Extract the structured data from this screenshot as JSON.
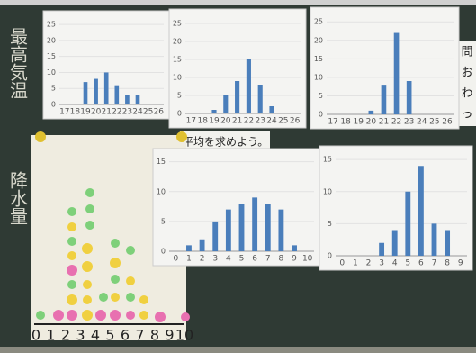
{
  "chart_data": [
    {
      "type": "bar",
      "categories": [
        "17",
        "18",
        "19",
        "20",
        "21",
        "22",
        "23",
        "24",
        "25",
        "26"
      ],
      "values": [
        null,
        null,
        7,
        8,
        10,
        6,
        3,
        3,
        null,
        null
      ],
      "color": "#4a7ebb",
      "ylim": [
        0,
        27
      ],
      "yticks": [
        0,
        5,
        10,
        15,
        20,
        25
      ]
    },
    {
      "type": "bar",
      "categories": [
        "17",
        "18",
        "19",
        "20",
        "21",
        "22",
        "23",
        "24",
        "25",
        "26"
      ],
      "values": [
        null,
        null,
        1,
        5,
        9,
        15,
        8,
        2,
        null,
        null
      ],
      "color": "#4a7ebb",
      "ylim": [
        0,
        27
      ],
      "yticks": [
        0,
        5,
        10,
        15,
        20,
        25
      ]
    },
    {
      "type": "bar",
      "categories": [
        "17",
        "18",
        "19",
        "20",
        "21",
        "22",
        "23",
        "24",
        "25",
        "26"
      ],
      "values": [
        null,
        null,
        null,
        1,
        8,
        22,
        9,
        null,
        null,
        null
      ],
      "color": "#4a7ebb",
      "ylim": [
        0,
        27
      ],
      "yticks": [
        0,
        5,
        10,
        15,
        20,
        25
      ]
    },
    {
      "type": "bar",
      "categories": [
        "0",
        "1",
        "2",
        "3",
        "4",
        "5",
        "6",
        "7",
        "8",
        "9",
        "10"
      ],
      "values": [
        null,
        1,
        2,
        5,
        7,
        8,
        9,
        8,
        7,
        1,
        null
      ],
      "color": "#4a7ebb",
      "ylim": [
        0,
        16
      ],
      "yticks": [
        0,
        5,
        10,
        15
      ]
    },
    {
      "type": "bar",
      "categories": [
        "0",
        "1",
        "2",
        "3",
        "4",
        "5",
        "6",
        "7",
        "8",
        "9"
      ],
      "values": [
        null,
        null,
        null,
        2,
        4,
        10,
        14,
        5,
        4,
        null
      ],
      "color": "#4a7ebb",
      "ylim": [
        0,
        16
      ],
      "yticks": [
        0,
        5,
        10,
        15
      ]
    }
  ],
  "labels": {
    "max_temp": "最高気温",
    "rain": "降水量",
    "task": "平均を求めよう。",
    "side": [
      "問",
      "お",
      "わ",
      "っ"
    ],
    "number_line": [
      "0",
      "1",
      "2",
      "3",
      "4",
      "5",
      "6",
      "7",
      "8",
      "9",
      "10"
    ]
  }
}
